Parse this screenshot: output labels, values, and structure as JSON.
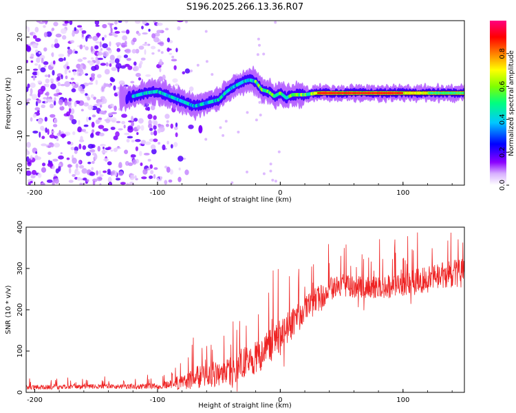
{
  "chart_data": [
    {
      "type": "heatmap",
      "title": "S196.2025.266.13.36.R07",
      "xlabel": "Height of straight line (km)",
      "ylabel": "Frequency (Hz)",
      "xlim": [
        -207,
        150
      ],
      "ylim": [
        -25,
        25
      ],
      "xticks": [
        "-200",
        "-100",
        "0",
        "100"
      ],
      "yticks": [
        "-20",
        "-10",
        "0",
        "10",
        "20"
      ],
      "colorbar": {
        "label": "Normalized spectral amplitude",
        "range": [
          0,
          1
        ],
        "ticks": [
          "0.0",
          "0.2",
          "0.4",
          "0.6",
          "0.8"
        ],
        "colors": [
          "#ffffff",
          "#8a00ff",
          "#0000ff",
          "#00c8ff",
          "#00ff7f",
          "#80ff00",
          "#ffff00",
          "#ff8000",
          "#ff0000",
          "#ff007f"
        ]
      },
      "ridge": {
        "x": [
          -125,
          -110,
          -100,
          -90,
          -80,
          -70,
          -60,
          -50,
          -45,
          -40,
          -35,
          -30,
          -25,
          -20,
          -15,
          -10,
          -5,
          0,
          5,
          10,
          20,
          30,
          40,
          60,
          80,
          100,
          120,
          150
        ],
        "freq": [
          1.5,
          3,
          3.5,
          2,
          0.5,
          -1,
          0,
          1,
          3,
          4.5,
          5.5,
          6.5,
          7,
          6.5,
          4,
          3.5,
          2,
          3,
          1.5,
          2.5,
          2.5,
          3,
          3,
          3,
          3,
          3,
          3,
          3
        ]
      },
      "background_noise_x_range": [
        -207,
        -100
      ]
    },
    {
      "type": "line",
      "title": "",
      "xlabel": "Height of straight line (km)",
      "ylabel": "SNR (10 * v/v)",
      "xlim": [
        -207,
        150
      ],
      "ylim": [
        0,
        400
      ],
      "xticks": [
        "-200",
        "-100",
        "0",
        "100"
      ],
      "yticks": [
        "0",
        "100",
        "200",
        "300",
        "400"
      ],
      "series": [
        {
          "name": "SNR",
          "color": "#ee2222",
          "trend_x": [
            -207,
            -150,
            -100,
            -90,
            -80,
            -70,
            -60,
            -50,
            -40,
            -30,
            -20,
            -10,
            0,
            10,
            20,
            30,
            40,
            50,
            60,
            80,
            100,
            120,
            150
          ],
          "trend_y": [
            12,
            14,
            15,
            20,
            25,
            35,
            40,
            45,
            55,
            70,
            85,
            110,
            140,
            165,
            200,
            225,
            250,
            260,
            255,
            255,
            260,
            275,
            290
          ],
          "noise_amplitude": [
            8,
            8,
            10,
            15,
            30,
            40,
            40,
            45,
            55,
            55,
            60,
            60,
            60,
            55,
            50,
            45,
            40,
            40,
            40,
            40,
            45,
            50,
            50
          ]
        }
      ]
    }
  ]
}
